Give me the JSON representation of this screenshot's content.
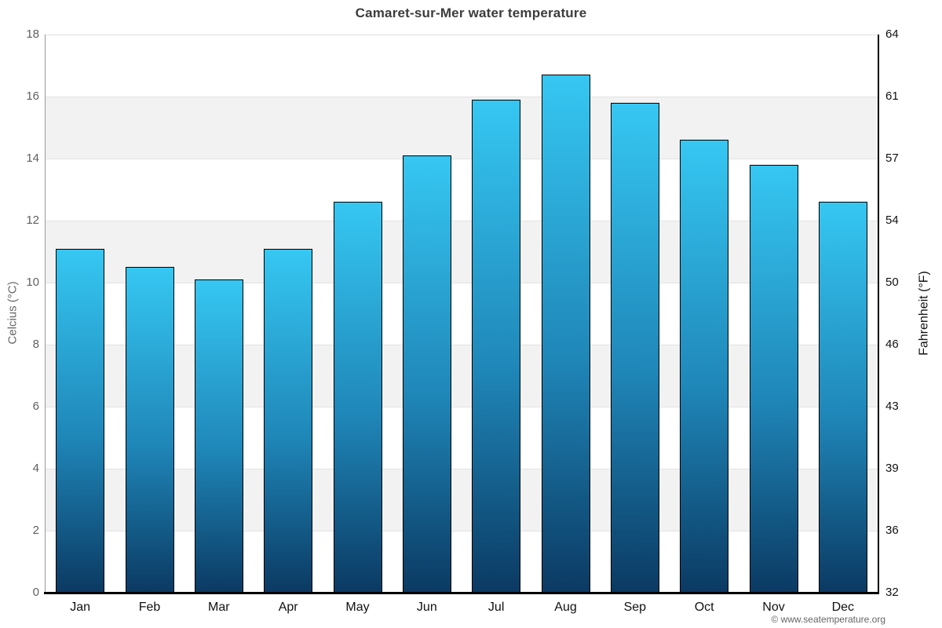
{
  "title": "Camaret-sur-Mer water temperature",
  "credit": "© www.seatemperature.org",
  "chart_data": {
    "type": "bar",
    "title": "Camaret-sur-Mer water temperature",
    "categories": [
      "Jan",
      "Feb",
      "Mar",
      "Apr",
      "May",
      "Jun",
      "Jul",
      "Aug",
      "Sep",
      "Oct",
      "Nov",
      "Dec"
    ],
    "values": [
      11.1,
      10.5,
      10.1,
      11.1,
      12.6,
      14.1,
      15.9,
      16.7,
      15.8,
      14.6,
      13.8,
      12.6
    ],
    "xlabel": "",
    "ylabel_left": "Celcius (°C)",
    "ylabel_right": "Fahrenheit (°F)",
    "ylim": [
      0,
      18
    ],
    "celsius_ticks": [
      18,
      16,
      14,
      12,
      10,
      8,
      6,
      4,
      2,
      0
    ],
    "fahrenheit_ticks": [
      64,
      61,
      57,
      54,
      50,
      46,
      43,
      39,
      36,
      32
    ],
    "grid": "alternating horizontal bands, light gridlines every 2 °C",
    "legend": "none",
    "colors": {
      "bar_top": "#36c7f2",
      "bar_bottom": "#0b3a63",
      "bar_border": "#000000",
      "band": "#f2f2f2",
      "grid_line": "#e2e2e2",
      "title": "#3c3c3c",
      "left_axis_text": "#606060",
      "right_axis_text": "#111111",
      "credit_text": "#666666"
    }
  }
}
